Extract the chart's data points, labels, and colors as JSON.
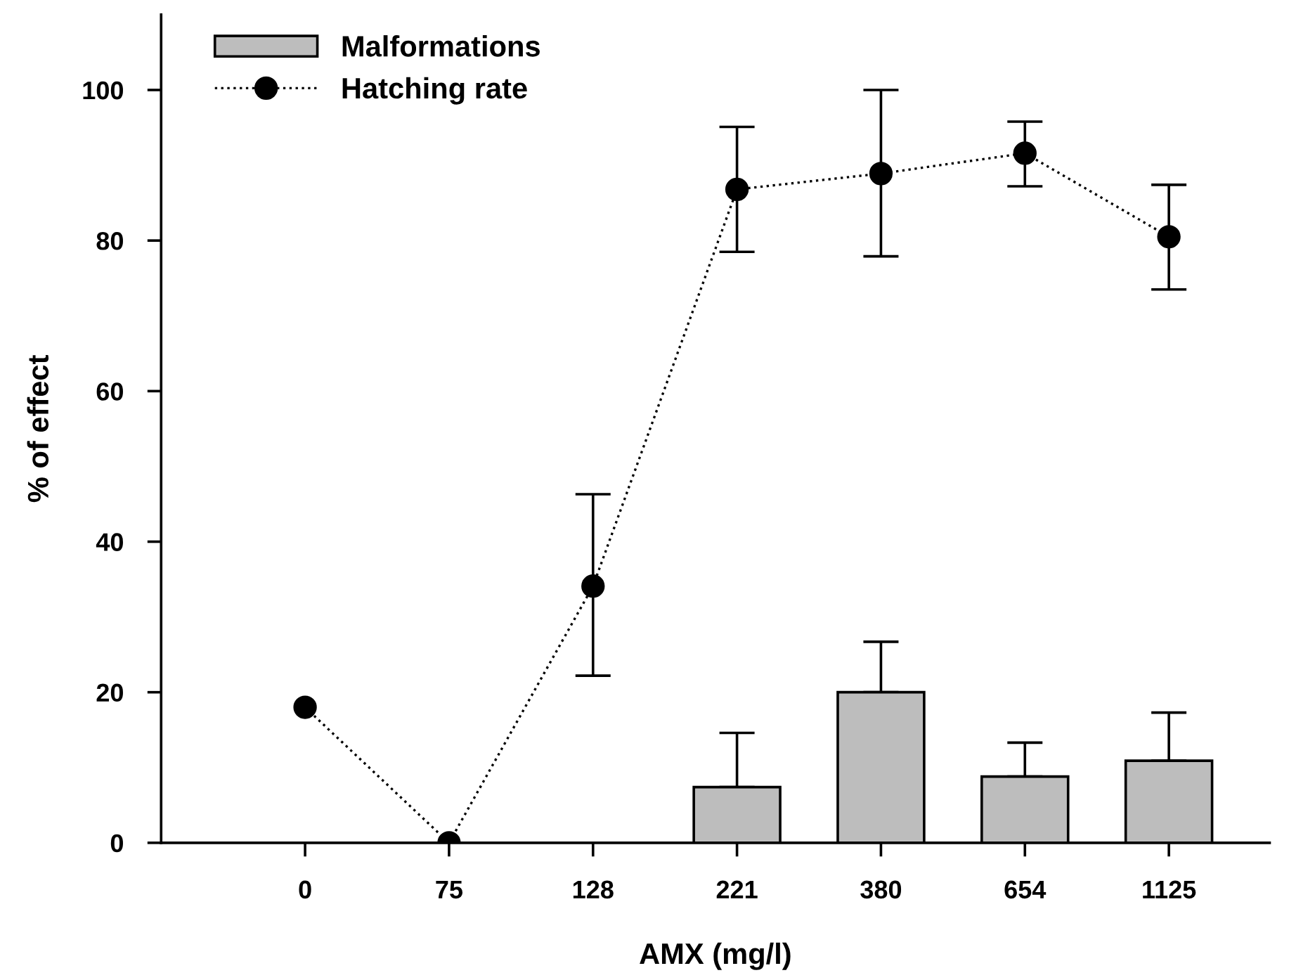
{
  "chart_data": {
    "type": "bar",
    "xlabel": "AMX (mg/l)",
    "ylabel": "% of effect",
    "categories": [
      "0",
      "75",
      "128",
      "221",
      "380",
      "654",
      "1125"
    ],
    "series": [
      {
        "name": "Malformations",
        "color": "#bdbdbd",
        "values": [
          null,
          null,
          null,
          7.4,
          20,
          8.8,
          10.9
        ],
        "errors": [
          null,
          null,
          null,
          [
            7.4,
            14.6
          ],
          [
            20,
            26.7
          ],
          [
            8.8,
            13.3
          ],
          [
            10.9,
            17.3
          ]
        ]
      },
      {
        "name": "Hatching rate",
        "type": "line",
        "color": "#000000",
        "marker": "circle",
        "line_style": "dotted",
        "values": [
          18,
          0,
          34.1,
          86.8,
          88.9,
          91.6,
          80.5
        ],
        "errors": [
          null,
          null,
          [
            22.2,
            46.3
          ],
          [
            78.5,
            95.1
          ],
          [
            77.9,
            100
          ],
          [
            87.2,
            95.8
          ],
          [
            73.5,
            87.4
          ]
        ]
      }
    ],
    "ylim": [
      0,
      110
    ],
    "yticks": [
      0,
      20,
      40,
      60,
      80,
      100
    ],
    "grid": false,
    "legend": "top left"
  }
}
